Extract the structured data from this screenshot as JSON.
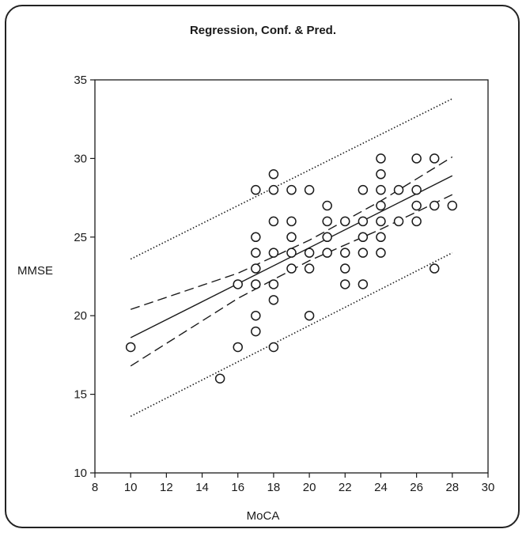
{
  "chart_data": {
    "type": "scatter",
    "title": "Regression, Conf. & Pred.",
    "xlabel": "MoCA",
    "ylabel": "MMSE",
    "xlim": [
      8,
      30
    ],
    "ylim": [
      10,
      35
    ],
    "xticks": [
      8,
      10,
      12,
      14,
      16,
      18,
      20,
      22,
      24,
      26,
      28,
      30
    ],
    "yticks": [
      10,
      15,
      20,
      25,
      30,
      35
    ],
    "grid": false,
    "points": [
      [
        10,
        18
      ],
      [
        15,
        16
      ],
      [
        16,
        22
      ],
      [
        16,
        18
      ],
      [
        17,
        28
      ],
      [
        17,
        25
      ],
      [
        17,
        24
      ],
      [
        17,
        23
      ],
      [
        17,
        22
      ],
      [
        17,
        20
      ],
      [
        17,
        19
      ],
      [
        18,
        29
      ],
      [
        18,
        28
      ],
      [
        18,
        26
      ],
      [
        18,
        24
      ],
      [
        18,
        22
      ],
      [
        18,
        21
      ],
      [
        18,
        18
      ],
      [
        19,
        28
      ],
      [
        19,
        26
      ],
      [
        19,
        25
      ],
      [
        19,
        24
      ],
      [
        19,
        23
      ],
      [
        20,
        28
      ],
      [
        20,
        24
      ],
      [
        20,
        23
      ],
      [
        20,
        20
      ],
      [
        21,
        27
      ],
      [
        21,
        26
      ],
      [
        21,
        25
      ],
      [
        21,
        24
      ],
      [
        22,
        26
      ],
      [
        22,
        24
      ],
      [
        22,
        23
      ],
      [
        22,
        22
      ],
      [
        23,
        28
      ],
      [
        23,
        26
      ],
      [
        23,
        25
      ],
      [
        23,
        24
      ],
      [
        23,
        22
      ],
      [
        24,
        30
      ],
      [
        24,
        29
      ],
      [
        24,
        28
      ],
      [
        24,
        27
      ],
      [
        24,
        26
      ],
      [
        24,
        25
      ],
      [
        24,
        24
      ],
      [
        25,
        28
      ],
      [
        25,
        26
      ],
      [
        26,
        30
      ],
      [
        26,
        28
      ],
      [
        26,
        27
      ],
      [
        26,
        26
      ],
      [
        27,
        30
      ],
      [
        27,
        27
      ],
      [
        27,
        23
      ],
      [
        28,
        27
      ]
    ],
    "regression_line": {
      "x": [
        10,
        28
      ],
      "y": [
        18.6,
        28.9
      ]
    },
    "confidence_band": {
      "upper": {
        "x": [
          10,
          16,
          20,
          24,
          28
        ],
        "y": [
          20.4,
          22.7,
          24.8,
          27.3,
          30.1
        ]
      },
      "lower": {
        "x": [
          10,
          16,
          20,
          24,
          28
        ],
        "y": [
          16.8,
          21.1,
          23.5,
          25.5,
          27.7
        ]
      }
    },
    "prediction_band": {
      "upper": {
        "x": [
          10,
          28
        ],
        "y": [
          23.6,
          33.8
        ]
      },
      "lower": {
        "x": [
          10,
          28
        ],
        "y": [
          13.6,
          24.0
        ]
      }
    }
  }
}
